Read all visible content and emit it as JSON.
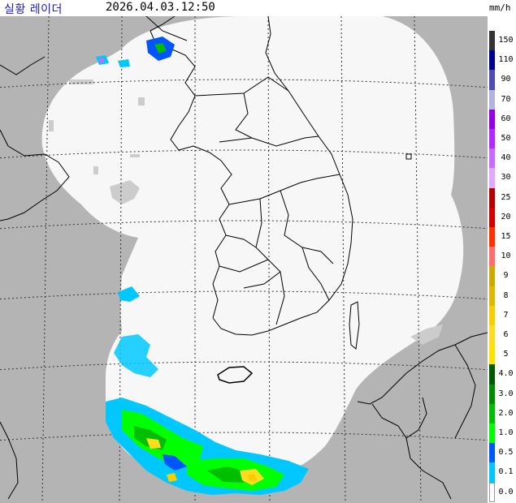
{
  "header": {
    "title": "실황 레이더",
    "timestamp": "2026.04.03.12:50",
    "unit": "mm/h"
  },
  "legend": {
    "levels": [
      {
        "label": "150",
        "color": "#333333"
      },
      {
        "label": "110",
        "color": "#000390"
      },
      {
        "label": "90",
        "color": "#4c4eb1"
      },
      {
        "label": "70",
        "color": "#b3b4de"
      },
      {
        "label": "60",
        "color": "#9300e4"
      },
      {
        "label": "50",
        "color": "#b329ff"
      },
      {
        "label": "40",
        "color": "#c969ff"
      },
      {
        "label": "30",
        "color": "#e0a9ff"
      },
      {
        "label": "25",
        "color": "#b40000"
      },
      {
        "label": "20",
        "color": "#d20000"
      },
      {
        "label": "15",
        "color": "#ff3200"
      },
      {
        "label": "10",
        "color": "#ff6e6e"
      },
      {
        "label": "9",
        "color": "#ccaa00"
      },
      {
        "label": "8",
        "color": "#e0b900"
      },
      {
        "label": "7",
        "color": "#f9cd00"
      },
      {
        "label": "6",
        "color": "#ffdc1f"
      },
      {
        "label": "5",
        "color": "#ffe100"
      },
      {
        "label": "4.0",
        "color": "#005a00"
      },
      {
        "label": "3.0",
        "color": "#008c00"
      },
      {
        "label": "2.0",
        "color": "#00be00"
      },
      {
        "label": "1.0",
        "color": "#00ff00"
      },
      {
        "label": "0.5",
        "color": "#0055ff"
      },
      {
        "label": "0.1",
        "color": "#00c8ff"
      },
      {
        "label": "0.0",
        "color": "#ffffff"
      }
    ]
  },
  "map": {
    "outside_color": "#b4b4b4",
    "coverage_color": "#f7f7f7",
    "clutter_color": "#c8c8c8",
    "grid_color": "#333333",
    "coast_color": "#000000"
  }
}
